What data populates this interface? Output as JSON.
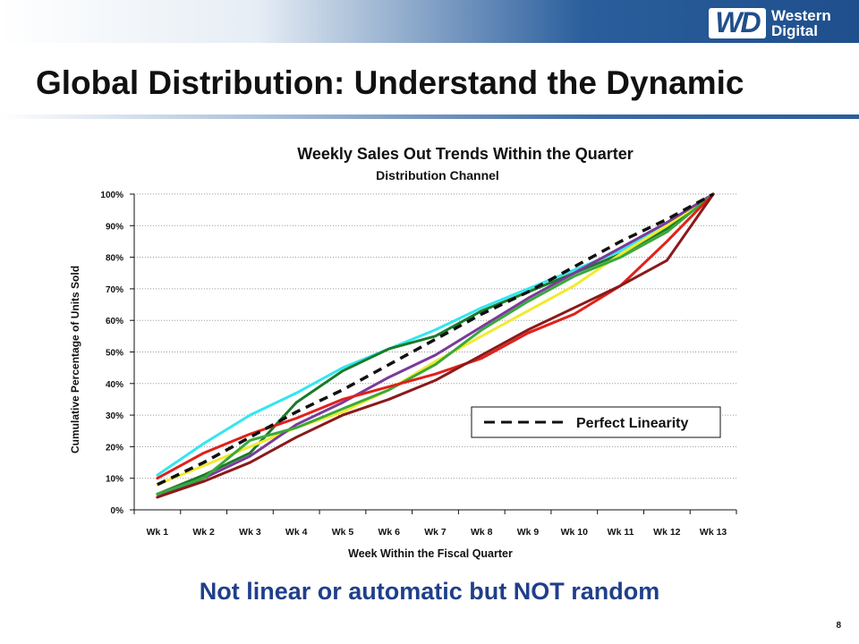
{
  "header": {
    "logo_text": "WD",
    "logo_name_line1": "Western",
    "logo_name_line2": "Digital"
  },
  "slide": {
    "title": "Global Distribution: Understand the Dynamic",
    "tagline": "Not linear or automatic but NOT random",
    "page_number": "8"
  },
  "colors": {
    "brand_blue": "#1f4f8c",
    "tagline": "#1f3f8a"
  },
  "chart_data": {
    "type": "line",
    "title": "Weekly Sales Out Trends Within the Quarter",
    "subtitle": "Distribution Channel",
    "xlabel": "Week Within the Fiscal Quarter",
    "ylabel": "Cumulative Percentage of Units Sold",
    "categories": [
      "Wk 1",
      "Wk 2",
      "Wk 3",
      "Wk 4",
      "Wk 5",
      "Wk 6",
      "Wk 7",
      "Wk 8",
      "Wk 9",
      "Wk 10",
      "Wk 11",
      "Wk 12",
      "Wk 13"
    ],
    "y_ticks": [
      "0%",
      "10%",
      "20%",
      "30%",
      "40%",
      "50%",
      "60%",
      "70%",
      "80%",
      "90%",
      "100%"
    ],
    "ylim": [
      0,
      100
    ],
    "grid": true,
    "legend_position": "right",
    "series": [
      {
        "color": "#33e6f0",
        "dashed": false,
        "values": [
          11,
          21,
          30,
          37,
          45,
          51,
          57,
          64,
          70,
          76,
          82,
          91,
          100
        ]
      },
      {
        "color": "#1a7a2a",
        "dashed": false,
        "values": [
          5,
          11,
          18,
          34,
          44,
          51,
          55,
          63,
          69,
          75,
          81,
          89,
          100
        ]
      },
      {
        "color": "#f2ea2e",
        "dashed": false,
        "values": [
          8,
          14,
          20,
          26,
          31,
          38,
          47,
          55,
          63,
          71,
          81,
          90,
          100
        ]
      },
      {
        "color": "#7a3a9a",
        "dashed": false,
        "values": [
          4,
          10,
          17,
          27,
          34,
          42,
          49,
          58,
          67,
          75,
          83,
          91,
          100
        ]
      },
      {
        "color": "#3aa83a",
        "dashed": false,
        "values": [
          5,
          10,
          22,
          26,
          32,
          38,
          46,
          57,
          66,
          74,
          80,
          88,
          100
        ]
      },
      {
        "color": "#e0201a",
        "dashed": false,
        "values": [
          10,
          18,
          24,
          29,
          35,
          39,
          43,
          48,
          56,
          62,
          71,
          85,
          100
        ]
      },
      {
        "color": "#8a1a1a",
        "dashed": false,
        "values": [
          4,
          9,
          15,
          23,
          30,
          35,
          41,
          49,
          57,
          64,
          71,
          79,
          100
        ]
      },
      {
        "name": "Perfect Linearity",
        "color": "#111111",
        "dashed": true,
        "values": [
          8,
          15,
          23,
          31,
          38,
          46,
          54,
          62,
          69,
          77,
          85,
          92,
          100
        ]
      }
    ]
  }
}
